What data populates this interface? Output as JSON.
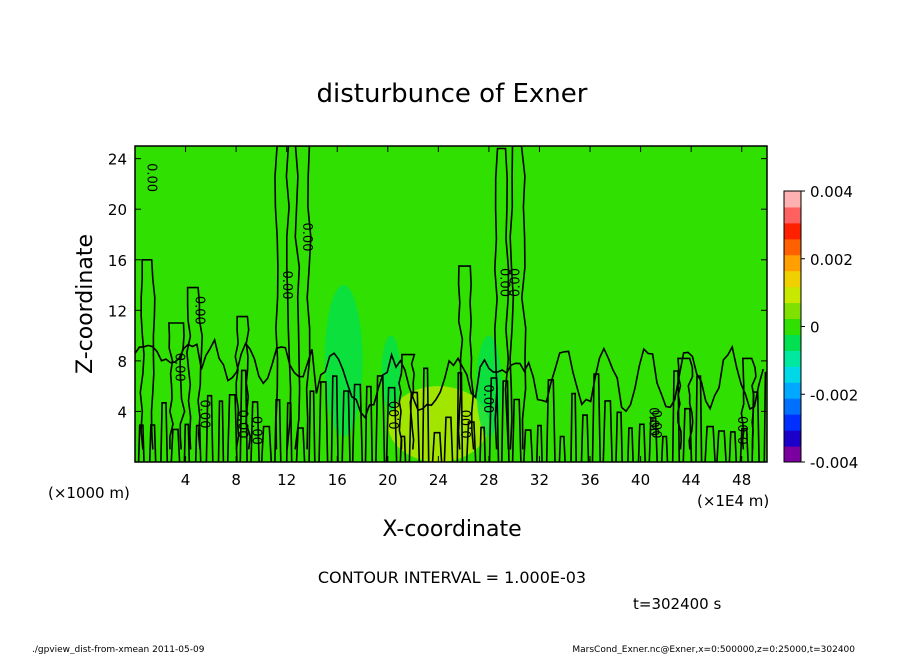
{
  "chart_data": {
    "type": "heatmap",
    "title": "disturbunce of Exner",
    "xlabel": "X-coordinate",
    "ylabel": "Z-coordinate",
    "x_unit_left": "(×1000 m)",
    "x_unit_right": "(×1E4 m)",
    "xlim": [
      0,
      50
    ],
    "ylim": [
      0,
      25
    ],
    "x_ticks": [
      "4",
      "8",
      "12",
      "16",
      "20",
      "24",
      "28",
      "32",
      "36",
      "40",
      "44",
      "48"
    ],
    "y_ticks": [
      "4",
      "8",
      "12",
      "16",
      "20",
      "24"
    ],
    "contour_interval_text": "CONTOUR INTERVAL = 1.000E-03",
    "time_text": "t=302400  s",
    "colorbar": {
      "range": [
        -0.004,
        0.004
      ],
      "tick_labels": [
        "0.004",
        "0.002",
        "0",
        "-0.002",
        "-0.004"
      ],
      "tick_values": [
        0.004,
        0.002,
        0,
        -0.002,
        -0.004
      ],
      "colors": [
        "#7a00a0",
        "#1a00c8",
        "#0030ff",
        "#0070ff",
        "#00a8ff",
        "#00d8e8",
        "#00e8a0",
        "#00e050",
        "#30e000",
        "#80e000",
        "#c8e800",
        "#f0d000",
        "#ffa000",
        "#ff6000",
        "#ff2000",
        "#ff6060",
        "#ffb0b0"
      ]
    },
    "background_value": 0.0,
    "features": [
      {
        "name": "positive region",
        "x": [
          26,
          50
        ],
        "z": [
          0,
          25
        ],
        "value": 0.0002
      },
      {
        "name": "low-level positive anomaly",
        "x": [
          20,
          28
        ],
        "z": [
          0,
          6
        ],
        "value": 0.0009
      },
      {
        "name": "negative plume",
        "x": [
          15,
          18
        ],
        "z": [
          2,
          14
        ],
        "value": -0.0004
      },
      {
        "name": "negative plume",
        "x": [
          19.5,
          21
        ],
        "z": [
          4,
          10
        ],
        "value": -0.0003
      },
      {
        "name": "negative plume",
        "x": [
          27,
          29
        ],
        "z": [
          2,
          10
        ],
        "value": -0.0006
      }
    ],
    "contour_labels": [
      "0.00",
      "0.00",
      "0.00",
      "0.00",
      "0.00",
      "0.00",
      "0.00",
      "0.00",
      "0.00",
      "0.00",
      "0.00",
      "0.00",
      "0.00",
      "0.00",
      "0.00",
      "0.00"
    ]
  },
  "footer": {
    "left": "./gpview_dist-from-xmean  2011-05-09",
    "right": "MarsCond_Exner.nc@Exner,x=0:500000,z=0:25000,t=302400"
  }
}
